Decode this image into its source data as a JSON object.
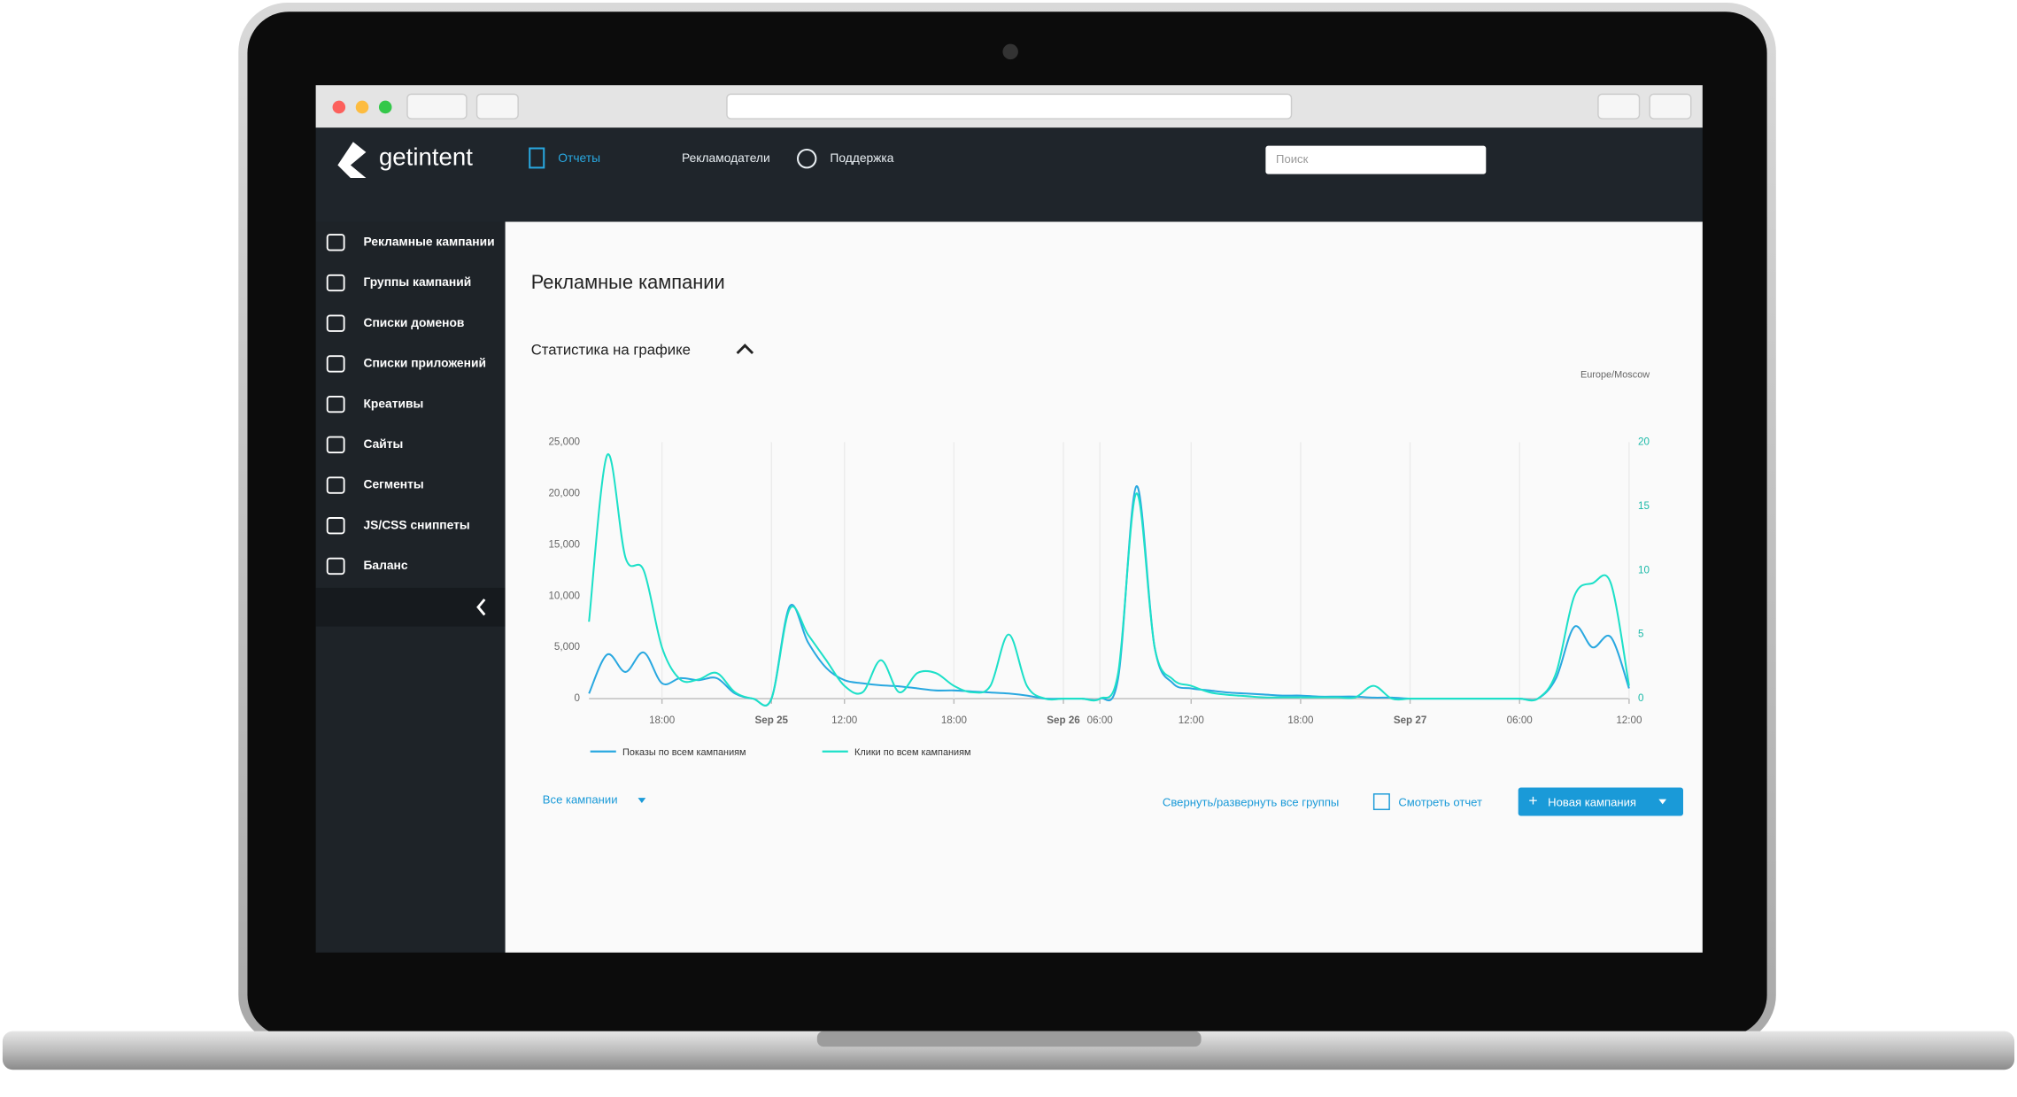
{
  "nav": {
    "logo": "getintent",
    "items": [
      "Отчеты",
      "Рекламодатели",
      "Поддержка"
    ],
    "search": "Поиск"
  },
  "sidebar": {
    "items": [
      "Рекламные кампании",
      "Группы кампаний",
      "Списки доменов",
      "Списки приложений",
      "Креативы",
      "Сайты",
      "Сегменты",
      "JS/CSS сниппеты",
      "Баланс"
    ]
  },
  "page": {
    "title": "Рекламные кампании",
    "section": "Статистика на графике",
    "timezone": "Europe/Moscow",
    "filter": "Все кампании",
    "toggle": "Свернуть/развернуть все группы",
    "report": "Смотреть отчет",
    "new": "Новая кампания"
  },
  "chart_data": {
    "type": "line",
    "categories": [
      null,
      null,
      null,
      null,
      "18:00",
      null,
      null,
      null,
      null,
      null,
      "Sep 25",
      null,
      null,
      null,
      "12:00",
      null,
      null,
      null,
      null,
      null,
      "18:00",
      null,
      null,
      null,
      null,
      null,
      "Sep 26",
      null,
      "06:00",
      null,
      null,
      null,
      null,
      "12:00",
      null,
      null,
      null,
      null,
      null,
      "18:00",
      null,
      null,
      null,
      null,
      null,
      "Sep 27",
      null,
      null,
      null,
      null,
      null,
      "06:00",
      null,
      null,
      null,
      null,
      null,
      "12:00"
    ],
    "series": [
      {
        "name": "Показы по всем кампаниям",
        "color": "#29a8e0",
        "values": [
          500,
          4300,
          2600,
          4500,
          1500,
          2000,
          1800,
          2000,
          500,
          0,
          0,
          9000,
          5500,
          3000,
          1800,
          1500,
          1300,
          1200,
          1000,
          800,
          800,
          700,
          600,
          500,
          300,
          0,
          0,
          0,
          0,
          2000,
          20700,
          5000,
          1500,
          1000,
          800,
          600,
          500,
          400,
          300,
          300,
          200,
          200,
          200,
          100,
          100,
          0,
          0,
          0,
          0,
          0,
          0,
          0,
          0,
          2000,
          7000,
          5000,
          6000,
          1000
        ]
      },
      {
        "name": "Клики по всем кампаниям",
        "color": "#1de0c8",
        "axis": "y2",
        "values": [
          6,
          19,
          11,
          10,
          4,
          1.5,
          1.5,
          2,
          0.5,
          0,
          0,
          7,
          5,
          3,
          1,
          0.5,
          3,
          0.5,
          2,
          2,
          1,
          0.5,
          1,
          5,
          1,
          0,
          0,
          0,
          0,
          2,
          16,
          4,
          1.5,
          1,
          0.5,
          0.3,
          0.2,
          0.1,
          0.1,
          0.1,
          0.1,
          0.1,
          0.1,
          1,
          0,
          0,
          0,
          0,
          0,
          0,
          0,
          0,
          0,
          2,
          8,
          9,
          9,
          1
        ]
      }
    ],
    "ylim": [
      0,
      25000
    ],
    "yticks": [
      0,
      {
        "value": 5000,
        "label": "5,000"
      },
      {
        "value": 10000,
        "label": "10,000"
      },
      {
        "value": 15000,
        "label": "15,000"
      },
      {
        "value": 20000,
        "label": "20,000"
      },
      {
        "value": 25000,
        "label": "25,000"
      }
    ],
    "y2lim": [
      0,
      20
    ],
    "y2ticks": [
      0,
      5,
      10,
      15,
      20
    ],
    "grid": true
  }
}
